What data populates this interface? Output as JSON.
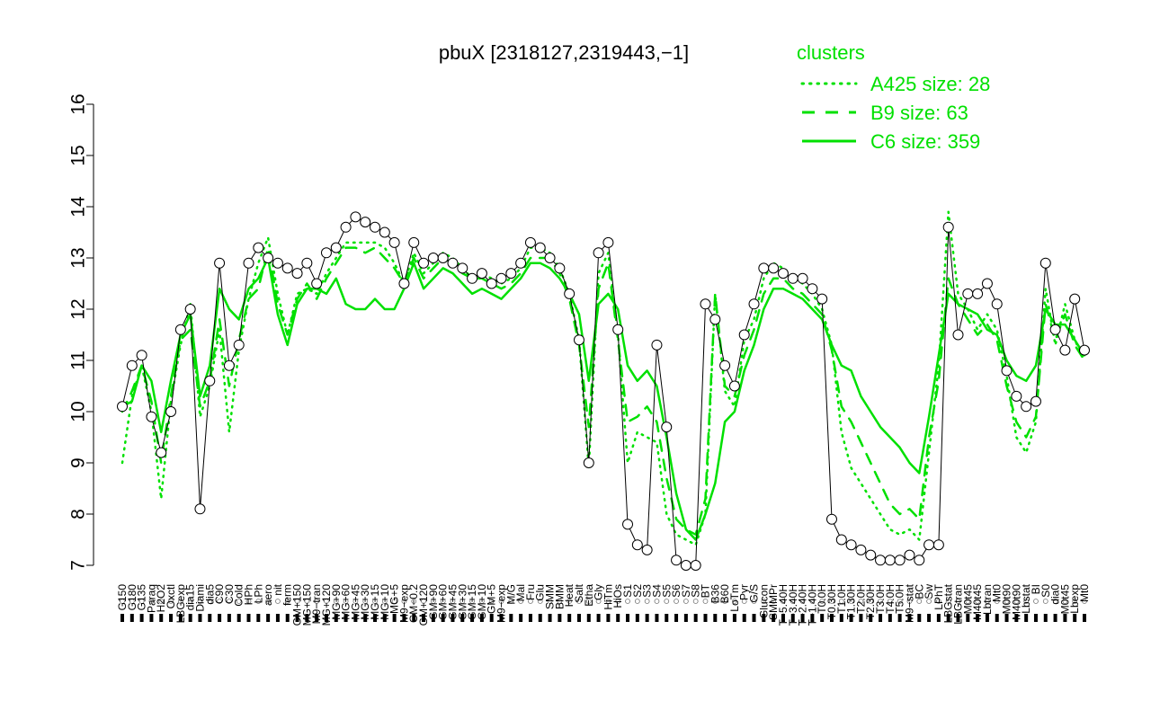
{
  "chart_data": {
    "type": "line",
    "title": "pbuX [2318127,2319443,−1]",
    "xlabel": "",
    "ylabel": "",
    "ylim": [
      7,
      16
    ],
    "yticks": [
      "7",
      "8",
      "9",
      "10",
      "11",
      "12",
      "13",
      "14",
      "15",
      "16"
    ],
    "x_tick_labels": [
      "G150",
      "G180",
      "G135",
      "Paraq",
      "H2O2",
      "Oxctl",
      "LBGexp",
      "dia15",
      "Diami",
      "dia5",
      "C90",
      "C30",
      "Cold",
      "HPh",
      "LPh",
      "aero",
      "nit",
      "ferm",
      "GM+150",
      "MG+150",
      "M9−tran",
      "MG+120",
      "MG+90",
      "MG+60",
      "MG+45",
      "MG+30",
      "MG+15",
      "MG+10",
      "MG+5",
      "M9−exp",
      "GM−0.2",
      "GM+120",
      "GM+90",
      "GM+60",
      "GM+45",
      "GM+30",
      "GM+15",
      "GM+10",
      "GM+5",
      "M9−exp",
      "M/G",
      "Mal",
      "Fru",
      "Glu",
      "SMM",
      "BMM",
      "Heat",
      "Salt",
      "Etha",
      "Gly",
      "HiTm",
      "HiOs",
      "S1",
      "S2",
      "S3",
      "S4",
      "S5",
      "S6",
      "S7",
      "S8",
      "BT",
      "B36",
      "B60",
      "LoTm",
      "Pyr",
      "G/S",
      "Glucon",
      "SMMPr",
      "T−5.40H",
      "T−3.40H",
      "T−2.40H",
      "T−1.40H",
      "T0.0H",
      "T0.30H",
      "T1.0H",
      "T1.30H",
      "T2.0H",
      "T2.30H",
      "T3.0H",
      "T4.0H",
      "T5.0H",
      "M9−stat",
      "BC",
      "Sw",
      "LPhT",
      "LBGstat",
      "LBGtran",
      "M0t45",
      "M40t45",
      "Lbtran",
      "Mt0",
      "M0t90",
      "M40t90",
      "Lbstat",
      "BI",
      "S0",
      "dia0",
      "M0t45",
      "Lbexp",
      "Mt0"
    ],
    "legend": {
      "title": "clusters",
      "position": "top-right",
      "entries": [
        {
          "label": "A425 size: 28",
          "style": "dotted"
        },
        {
          "label": "B9 size: 63",
          "style": "dashed"
        },
        {
          "label": "C6 size: 359",
          "style": "solid"
        }
      ]
    },
    "series": [
      {
        "name": "A425 size: 28",
        "style": "dotted",
        "values": [
          9.0,
          10.3,
          10.9,
          10.0,
          8.3,
          10.2,
          11.3,
          12.1,
          9.9,
          10.5,
          11.6,
          9.6,
          11.2,
          12.2,
          12.9,
          13.4,
          12.3,
          11.5,
          12.3,
          12.4,
          12.3,
          12.7,
          13.0,
          13.3,
          13.3,
          13.3,
          13.3,
          13.2,
          12.9,
          12.5,
          13.1,
          12.7,
          12.9,
          13.1,
          13.0,
          12.8,
          12.6,
          12.7,
          12.6,
          12.5,
          12.6,
          12.8,
          13.2,
          13.2,
          13.1,
          12.8,
          12.3,
          11.4,
          8.9,
          12.7,
          13.1,
          11.5,
          9.0,
          9.6,
          9.5,
          9.4,
          8.0,
          7.6,
          7.5,
          7.4,
          8.0,
          12.3,
          10.4,
          10.1,
          11.4,
          11.8,
          12.6,
          12.9,
          12.8,
          12.6,
          12.5,
          12.3,
          12.0,
          11.3,
          9.6,
          8.9,
          8.6,
          8.3,
          8.0,
          7.7,
          7.6,
          7.7,
          7.5,
          9.2,
          10.9,
          13.9,
          12.3,
          12.0,
          11.6,
          11.9,
          11.6,
          10.7,
          9.5,
          9.2,
          9.8,
          12.4,
          11.3,
          12.1,
          11.4,
          11.0
        ]
      },
      {
        "name": "B9 size: 63",
        "style": "dashed",
        "values": [
          10.0,
          10.4,
          10.9,
          10.2,
          9.0,
          10.3,
          11.4,
          11.6,
          10.1,
          10.6,
          11.8,
          10.5,
          11.4,
          12.2,
          12.4,
          13.2,
          12.1,
          11.5,
          12.2,
          12.5,
          12.2,
          12.6,
          12.9,
          13.2,
          13.2,
          13.1,
          13.2,
          13.0,
          12.8,
          12.5,
          13.0,
          12.6,
          12.8,
          13.0,
          12.9,
          12.7,
          12.6,
          12.6,
          12.5,
          12.4,
          12.5,
          12.7,
          13.0,
          13.0,
          13.0,
          12.7,
          12.2,
          11.3,
          9.7,
          12.4,
          12.9,
          11.4,
          9.8,
          9.9,
          10.1,
          9.8,
          8.7,
          7.9,
          7.7,
          7.6,
          8.3,
          12.3,
          10.5,
          10.3,
          11.1,
          11.6,
          12.3,
          12.6,
          12.6,
          12.4,
          12.3,
          12.1,
          11.9,
          11.2,
          10.1,
          9.8,
          9.4,
          9.0,
          8.6,
          8.2,
          8.0,
          8.1,
          7.9,
          9.5,
          10.6,
          12.6,
          12.1,
          11.8,
          11.5,
          11.7,
          11.4,
          10.5,
          9.8,
          9.5,
          9.9,
          12.1,
          11.4,
          11.9,
          11.3,
          11.0
        ]
      },
      {
        "name": "C6 size: 359",
        "style": "solid",
        "values": [
          10.1,
          10.2,
          10.9,
          10.6,
          9.6,
          10.6,
          11.5,
          11.9,
          10.3,
          10.9,
          12.4,
          12.0,
          11.8,
          12.4,
          12.6,
          13.0,
          11.9,
          11.3,
          12.1,
          12.4,
          12.4,
          12.3,
          12.6,
          12.1,
          12.0,
          12.0,
          12.2,
          12.0,
          12.0,
          12.4,
          12.9,
          12.4,
          12.6,
          12.8,
          12.7,
          12.5,
          12.3,
          12.4,
          12.3,
          12.2,
          12.4,
          12.6,
          12.9,
          12.9,
          12.8,
          12.6,
          12.3,
          11.9,
          10.6,
          12.1,
          12.3,
          12.0,
          10.9,
          10.6,
          10.8,
          10.5,
          9.5,
          8.4,
          7.7,
          7.5,
          8.0,
          8.6,
          9.8,
          10.0,
          10.8,
          11.3,
          12.0,
          12.4,
          12.4,
          12.3,
          12.2,
          12.0,
          11.8,
          11.3,
          10.9,
          10.8,
          10.3,
          10.0,
          9.7,
          9.5,
          9.3,
          9.0,
          8.8,
          9.9,
          11.1,
          12.3,
          12.1,
          12.0,
          11.9,
          11.6,
          11.5,
          11.0,
          10.7,
          10.6,
          10.9,
          12.0,
          11.7,
          11.7,
          11.4,
          11.1
        ]
      }
    ],
    "points": [
      10.1,
      10.9,
      11.1,
      9.9,
      9.2,
      10.0,
      11.6,
      12.0,
      8.1,
      10.6,
      12.9,
      10.9,
      11.3,
      12.9,
      13.2,
      13.0,
      12.9,
      12.8,
      12.7,
      12.9,
      12.5,
      13.1,
      13.2,
      13.6,
      13.8,
      13.7,
      13.6,
      13.5,
      13.3,
      12.5,
      13.3,
      12.9,
      13.0,
      13.0,
      12.9,
      12.8,
      12.6,
      12.7,
      12.5,
      12.6,
      12.7,
      12.9,
      13.3,
      13.2,
      13.0,
      12.8,
      12.3,
      11.4,
      9.0,
      13.1,
      13.3,
      11.6,
      7.8,
      7.4,
      7.3,
      11.3,
      9.7,
      7.1,
      7.0,
      7.0,
      12.1,
      11.8,
      10.9,
      10.5,
      11.5,
      12.1,
      12.8,
      12.8,
      12.7,
      12.6,
      12.6,
      12.4,
      12.2,
      7.9,
      7.5,
      7.4,
      7.3,
      7.2,
      7.1,
      7.1,
      7.1,
      7.2,
      7.1,
      7.4,
      7.4,
      13.6,
      11.5,
      12.3,
      12.3,
      12.5,
      12.1,
      10.8,
      10.3,
      10.1,
      10.2,
      12.9,
      11.6,
      11.2,
      12.2,
      11.2
    ]
  }
}
